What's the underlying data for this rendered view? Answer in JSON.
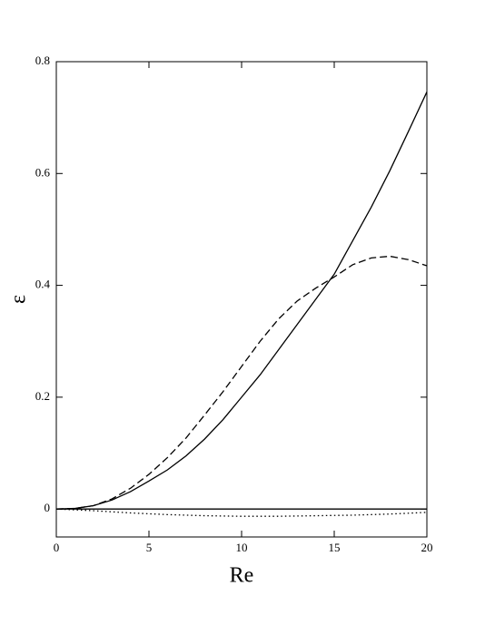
{
  "chart_data": {
    "type": "line",
    "x_label": "Re",
    "y_label": "ε",
    "xlim": [
      0,
      20
    ],
    "xticks": [
      0,
      5,
      10,
      15,
      20
    ],
    "ylim": [
      -0.05,
      0.8
    ],
    "yticks": [
      0,
      0.2,
      0.4,
      0.6,
      0.8
    ],
    "series": [
      {
        "color": "#000000",
        "dash": "solid",
        "x": [
          0,
          1,
          2,
          3,
          4,
          5,
          6,
          7,
          8,
          9,
          10,
          11,
          12,
          13,
          14,
          15,
          16,
          17,
          18,
          19,
          20
        ],
        "values": [
          0,
          0.001,
          0.006,
          0.016,
          0.031,
          0.05,
          0.07,
          0.095,
          0.125,
          0.16,
          0.2,
          0.24,
          0.285,
          0.33,
          0.375,
          0.42,
          0.48,
          0.54,
          0.605,
          0.675,
          0.746
        ]
      },
      {
        "color": "#000000",
        "dash": "dashed",
        "x": [
          0,
          1,
          2,
          3,
          4,
          5,
          6,
          7,
          8,
          9,
          10,
          11,
          12,
          13,
          14,
          15,
          16,
          17,
          18,
          19,
          20
        ],
        "values": [
          0,
          0.001,
          0.006,
          0.018,
          0.037,
          0.062,
          0.092,
          0.127,
          0.168,
          0.21,
          0.255,
          0.3,
          0.34,
          0.372,
          0.395,
          0.415,
          0.437,
          0.449,
          0.452,
          0.446,
          0.435
        ]
      },
      {
        "color": "#000000",
        "dash": "dotted",
        "x": [
          0,
          2,
          4,
          6,
          8,
          10,
          12,
          14,
          16,
          18,
          20
        ],
        "values": [
          0,
          -0.003,
          -0.007,
          -0.01,
          -0.012,
          -0.013,
          -0.013,
          -0.012,
          -0.011,
          -0.009,
          -0.006
        ]
      },
      {
        "color": "#000000",
        "dash": "solid",
        "x": [
          0,
          20
        ],
        "values": [
          0,
          0
        ]
      }
    ]
  }
}
